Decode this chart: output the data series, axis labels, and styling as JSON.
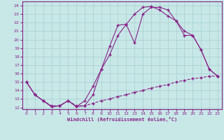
{
  "xlabel": "Windchill (Refroidissement éolien,°C)",
  "bg_color": "#c8e8e8",
  "line_color": "#882288",
  "grid_color": "#a8cccc",
  "xlim": [
    -0.5,
    23.5
  ],
  "ylim": [
    11.8,
    24.5
  ],
  "yticks": [
    12,
    13,
    14,
    15,
    16,
    17,
    18,
    19,
    20,
    21,
    22,
    23,
    24
  ],
  "xticks": [
    0,
    1,
    2,
    3,
    4,
    5,
    6,
    7,
    8,
    9,
    10,
    11,
    12,
    13,
    14,
    15,
    16,
    17,
    18,
    19,
    20,
    21,
    22,
    23
  ],
  "line1_x": [
    0,
    1,
    2,
    3,
    4,
    5,
    6,
    7,
    8,
    9,
    10,
    11,
    12,
    13,
    14,
    15,
    16,
    17,
    18,
    19,
    20,
    21,
    22,
    23
  ],
  "line1_y": [
    15.0,
    13.5,
    12.8,
    12.1,
    12.2,
    12.8,
    12.1,
    12.2,
    13.5,
    16.5,
    19.2,
    21.7,
    21.8,
    19.6,
    23.0,
    23.8,
    23.8,
    23.5,
    22.2,
    21.0,
    20.5,
    18.8,
    16.5,
    15.7
  ],
  "line2_x": [
    0,
    1,
    2,
    3,
    4,
    5,
    6,
    7,
    8,
    9,
    10,
    11,
    12,
    13,
    14,
    15,
    16,
    17,
    18,
    19,
    20,
    21,
    22,
    23
  ],
  "line2_y": [
    15.0,
    13.5,
    12.8,
    12.1,
    12.2,
    12.8,
    12.1,
    12.8,
    14.5,
    16.5,
    18.2,
    20.5,
    21.8,
    23.0,
    23.8,
    23.9,
    23.5,
    22.8,
    22.2,
    20.5,
    20.5,
    18.8,
    16.5,
    15.7
  ],
  "line3_x": [
    0,
    1,
    2,
    3,
    4,
    5,
    6,
    7,
    8,
    9,
    10,
    11,
    12,
    13,
    14,
    15,
    16,
    17,
    18,
    19,
    20,
    21,
    22,
    23
  ],
  "line3_y": [
    15.0,
    13.5,
    12.8,
    12.2,
    12.2,
    12.8,
    12.2,
    12.2,
    12.5,
    12.8,
    13.0,
    13.3,
    13.5,
    13.8,
    14.0,
    14.3,
    14.5,
    14.7,
    15.0,
    15.2,
    15.4,
    15.5,
    15.7,
    15.7
  ]
}
